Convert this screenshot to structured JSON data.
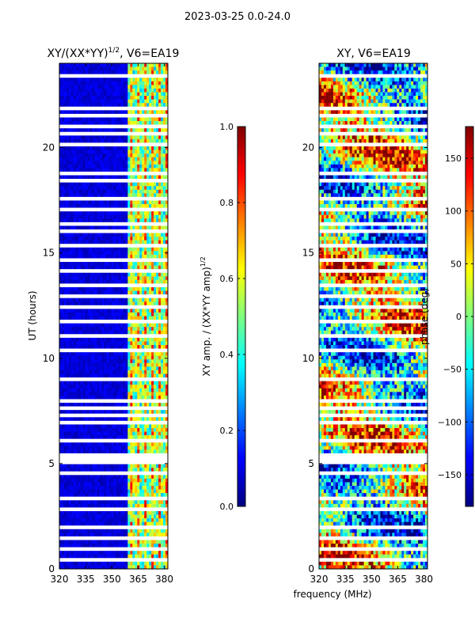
{
  "suptitle": "2023-03-25 0.0-24.0",
  "colors": {
    "jet": [
      "#00007f",
      "#0000ff",
      "#007fff",
      "#00ffff",
      "#7fff7f",
      "#ffff00",
      "#ff7f00",
      "#ff0000",
      "#7f0000"
    ],
    "gap": "#ffffff",
    "axis": "#000000"
  },
  "chart_data": [
    {
      "type": "heatmap",
      "title": "XY/(XX*YY)^1/2, V6=EA19",
      "title_main": "XY/(XX*YY)",
      "title_sup": "1/2",
      "title_tail": ", V6=EA19",
      "xlabel": "",
      "ylabel": "UT (hours)",
      "xlim": [
        320,
        382
      ],
      "ylim": [
        0,
        24
      ],
      "xticks": [
        320,
        335,
        350,
        365,
        380
      ],
      "yticks": [
        0,
        5,
        10,
        15,
        20
      ],
      "colorbar": {
        "label": "XY amp. / (XX*YY amp)^1/2",
        "label_main": "XY amp. / (XX*YY amp)",
        "label_sup": "1/2",
        "range": [
          0.0,
          1.0
        ],
        "ticks": [
          "0.0",
          "0.2",
          "0.4",
          "0.6",
          "0.8",
          "1.0"
        ],
        "tick_values": [
          0.0,
          0.2,
          0.4,
          0.6,
          0.8,
          1.0
        ]
      },
      "description_values": {
        "low_band_level": 0.05,
        "high_band_start_mhz": 359,
        "high_band_level": 0.5
      }
    },
    {
      "type": "heatmap",
      "title": "XY, V6=EA19",
      "xlabel": "frequency (MHz)",
      "ylabel": "",
      "xlim": [
        320,
        382
      ],
      "ylim": [
        0,
        24
      ],
      "xticks": [
        320,
        335,
        350,
        365,
        380
      ],
      "yticks": [
        0,
        5,
        10,
        15,
        20
      ],
      "colorbar": {
        "label": "phase (deg)",
        "range": [
          -180,
          180
        ],
        "ticks": [
          "−150",
          "−100",
          "−50",
          "0",
          "50",
          "100",
          "150"
        ],
        "tick_values": [
          -150,
          -100,
          -50,
          0,
          50,
          100,
          150
        ]
      }
    }
  ],
  "gap_rows_hours": [
    0.4,
    1.0,
    1.4,
    2.0,
    2.4,
    2.8,
    3.3,
    3.6,
    4.1,
    4.6,
    5.05,
    5.2,
    5.4,
    6.1,
    6.5,
    7.0,
    7.3,
    7.6,
    8.0,
    8.4,
    9.0,
    9.6,
    10.4,
    11.0,
    11.7,
    12.0,
    12.4,
    13.0,
    13.4,
    13.7,
    13.9,
    14.2,
    14.7,
    15.4,
    16.0,
    16.4,
    17.1,
    17.3,
    17.6,
    18.0,
    18.4,
    18.8,
    19.2,
    19.7,
    20.2,
    20.6,
    21.0,
    21.5,
    21.9,
    22.1,
    22.8,
    23.4
  ]
}
